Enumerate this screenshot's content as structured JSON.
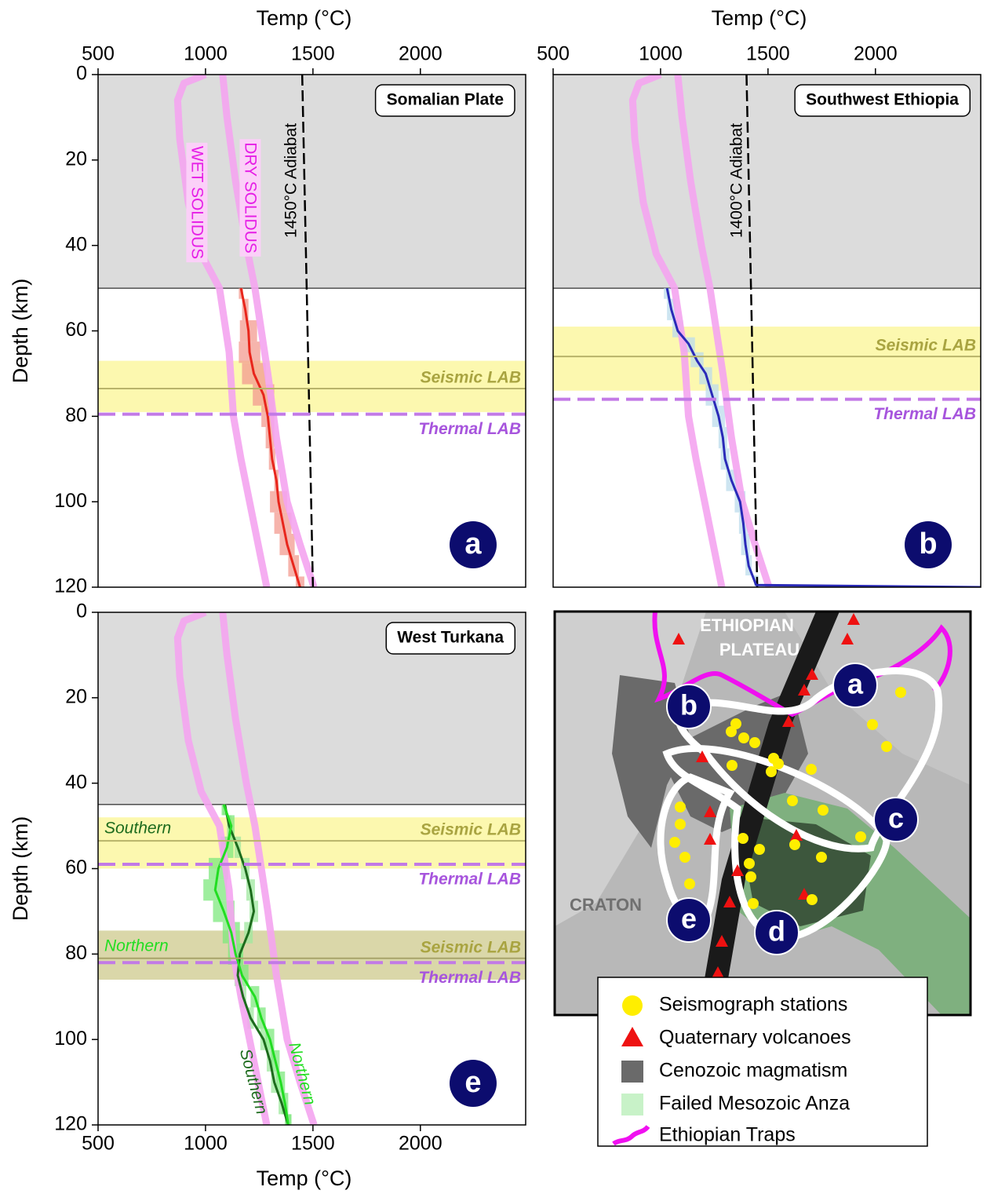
{
  "chart_data": [
    {
      "type": "line",
      "title": "Somalian Plate",
      "panel_label": "a",
      "x_label": "Temp (°C)",
      "y_label": "Depth (km)",
      "xlim": [
        500,
        2490
      ],
      "xticks": [
        500,
        1000,
        1500,
        2000
      ],
      "ylim": [
        120,
        0
      ],
      "yticks": [
        0,
        20,
        40,
        60,
        80,
        100,
        120
      ],
      "lithosphere_depth": 50,
      "lithosphere_color": "#dcdcdc",
      "series": [
        {
          "name": "WET SOLIDUS",
          "color": "#f4a4f0",
          "x": [
            1000,
            900,
            870,
            880,
            920,
            980,
            1065,
            1110,
            1130,
            1165,
            1205,
            1245,
            1285
          ],
          "y": [
            0,
            2,
            6,
            15,
            30,
            42,
            50,
            65,
            80,
            90,
            100,
            110,
            120
          ]
        },
        {
          "name": "DRY SOLIDUS",
          "color": "#f4a4f0",
          "x": [
            1080,
            1100,
            1140,
            1190,
            1230,
            1260,
            1290,
            1330,
            1380,
            1440,
            1505
          ],
          "y": [
            0,
            10,
            25,
            40,
            50,
            60,
            70,
            85,
            100,
            110,
            120
          ]
        },
        {
          "name": "1450°C Adiabat",
          "color": "#000000",
          "dashed": true,
          "x": [
            1450,
            1500
          ],
          "y": [
            0,
            120
          ]
        },
        {
          "color": "#e8261c",
          "band_color": "#f39b90",
          "x": [
            1165,
            1185,
            1200,
            1205,
            1225,
            1270,
            1290,
            1300,
            1310,
            1330,
            1340,
            1360,
            1380,
            1410,
            1440
          ],
          "xerr": [
            10,
            15,
            40,
            50,
            55,
            50,
            30,
            20,
            15,
            10,
            40,
            40,
            35,
            25,
            20
          ],
          "y": [
            50,
            55,
            60,
            65,
            70,
            75,
            80,
            85,
            90,
            95,
            100,
            105,
            110,
            115,
            120
          ]
        }
      ],
      "lab": [
        {
          "band_color": "#fcf7a6",
          "seismic_color": "#b8b36a",
          "thermal_color": "#c27ae6",
          "seismic": {
            "label": "Seismic LAB",
            "range": [
              67,
              79
            ],
            "depth": 73.5
          },
          "thermal": {
            "label": "Thermal LAB",
            "depth": 79.5
          }
        }
      ]
    },
    {
      "type": "line",
      "title": "Southwest Ethiopia",
      "panel_label": "b",
      "x_label": "Temp (°C)",
      "xlim": [
        500,
        2490
      ],
      "xticks": [
        500,
        1000,
        1500,
        2000
      ],
      "ylim": [
        120,
        0
      ],
      "lithosphere_depth": 50,
      "lithosphere_color": "#dcdcdc",
      "series": [
        {
          "color": "#f4a4f0",
          "x": [
            1000,
            900,
            870,
            880,
            920,
            980,
            1065,
            1110,
            1130,
            1165,
            1205,
            1245,
            1285
          ],
          "y": [
            0,
            2,
            6,
            15,
            30,
            42,
            50,
            65,
            80,
            90,
            100,
            110,
            120
          ]
        },
        {
          "color": "#f4a4f0",
          "x": [
            1080,
            1100,
            1140,
            1190,
            1230,
            1260,
            1290,
            1330,
            1380,
            1440,
            1505
          ],
          "y": [
            0,
            10,
            25,
            40,
            50,
            60,
            70,
            85,
            100,
            110,
            120
          ]
        },
        {
          "name": "1400°C Adiabat",
          "color": "#000000",
          "dashed": true,
          "x": [
            1400,
            1450
          ],
          "y": [
            0,
            120
          ]
        },
        {
          "color": "#2a2ab8",
          "band_color": "#bcdcec",
          "x": [
            1030,
            1050,
            1080,
            1130,
            1170,
            1210,
            1240,
            1270,
            1290,
            1300,
            1330,
            1370,
            1385,
            1395,
            1410,
            1445,
            2490
          ],
          "xerr": [
            15,
            20,
            25,
            30,
            30,
            30,
            30,
            30,
            20,
            20,
            25,
            25,
            20,
            20,
            15,
            10,
            0
          ],
          "y": [
            50,
            55,
            60,
            63,
            67,
            70,
            75,
            80,
            85,
            90,
            95,
            100,
            105,
            110,
            115,
            119.5,
            120
          ]
        }
      ],
      "lab": [
        {
          "band_color": "#fcf7a6",
          "seismic_color": "#b8b36a",
          "thermal_color": "#c27ae6",
          "seismic": {
            "label": "Seismic LAB",
            "range": [
              59,
              74
            ],
            "depth": 66
          },
          "thermal": {
            "label": "Thermal LAB",
            "depth": 76
          }
        }
      ]
    },
    {
      "type": "line",
      "title": "West Turkana",
      "panel_label": "e",
      "x_label": "Temp (°C)",
      "y_label": "Depth (km)",
      "xlim": [
        500,
        2490
      ],
      "xticks": [
        500,
        1000,
        1500,
        2000
      ],
      "ylim": [
        120,
        0
      ],
      "yticks": [
        0,
        20,
        40,
        60,
        80,
        100,
        120
      ],
      "lithosphere_depth": 45,
      "lithosphere_color": "#dcdcdc",
      "series": [
        {
          "color": "#f4a4f0",
          "x": [
            1000,
            900,
            870,
            880,
            920,
            980,
            1065,
            1110,
            1130,
            1165,
            1205,
            1245,
            1285
          ],
          "y": [
            0,
            2,
            6,
            15,
            30,
            42,
            50,
            65,
            80,
            90,
            100,
            110,
            120
          ]
        },
        {
          "color": "#f4a4f0",
          "x": [
            1080,
            1100,
            1140,
            1190,
            1230,
            1260,
            1290,
            1330,
            1380,
            1440,
            1505
          ],
          "y": [
            0,
            10,
            25,
            40,
            50,
            60,
            70,
            85,
            100,
            110,
            120
          ]
        },
        {
          "name": "Southern",
          "color": "#1d6b1d",
          "band_color": "#9fe89f",
          "x": [
            1090,
            1110,
            1150,
            1185,
            1210,
            1225,
            1200,
            1160,
            1150,
            1175,
            1210,
            1270,
            1300,
            1320,
            1355,
            1385
          ],
          "xerr": [
            10,
            10,
            15,
            20,
            20,
            20,
            20,
            15,
            15,
            15,
            15,
            15,
            15,
            15,
            15,
            15
          ],
          "y": [
            45,
            50,
            55,
            60,
            65,
            70,
            75,
            80,
            85,
            90,
            95,
            100,
            105,
            110,
            115,
            120
          ]
        },
        {
          "name": "Northern",
          "color": "#22dd22",
          "band_color": "#7ee87e",
          "x": [
            1085,
            1120,
            1100,
            1060,
            1045,
            1085,
            1120,
            1140,
            1170,
            1230,
            1260,
            1300,
            1325,
            1350,
            1370,
            1385
          ],
          "xerr": [
            10,
            15,
            30,
            45,
            55,
            50,
            40,
            35,
            30,
            20,
            20,
            20,
            20,
            20,
            15,
            15
          ],
          "y": [
            45,
            50,
            55,
            60,
            65,
            70,
            75,
            80,
            85,
            90,
            95,
            100,
            105,
            110,
            115,
            120
          ]
        }
      ],
      "lab": [
        {
          "name": "Southern",
          "color": "#1d6b1d",
          "band_color": "#fcf7a6",
          "seismic_color": "#b8b36a",
          "thermal_color": "#c27ae6",
          "seismic": {
            "label": "Seismic LAB",
            "range": [
              48,
              60
            ],
            "depth": 53.5
          },
          "thermal": {
            "label": "Thermal LAB",
            "depth": 59
          }
        },
        {
          "name": "Northern",
          "color": "#22dd22",
          "band_color": "#d6d3a0",
          "seismic_color": "#a8a46a",
          "thermal_color": "#c27ae6",
          "seismic": {
            "label": "Seismic LAB",
            "range": [
              74.5,
              86
            ],
            "depth": 81
          },
          "thermal": {
            "label": "Thermal LAB",
            "depth": 82
          }
        }
      ]
    }
  ],
  "map": {
    "labels": [
      "ETHIOPIAN",
      "PLATEAU",
      "CRATON"
    ],
    "regions": [
      "a",
      "b",
      "c",
      "d",
      "e"
    ],
    "legend": [
      "Seismograph stations",
      "Quaternary volcanoes",
      "Cenozoic magmatism",
      "Failed Mesozoic Anza",
      "Ethiopian Traps"
    ]
  }
}
